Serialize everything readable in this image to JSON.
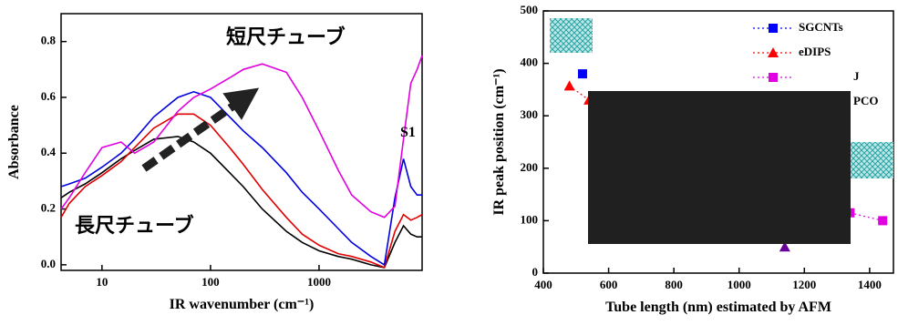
{
  "chart_data": [
    {
      "type": "line",
      "xlabel": "IR wavenumber (cm⁻¹)",
      "ylabel": "Absorbance",
      "xscale": "log",
      "xlim": [
        4.2,
        8900
      ],
      "ylim": [
        -0.02,
        0.9
      ],
      "xticks": [
        10,
        100,
        1000
      ],
      "yticks": [
        {
          "value": 0,
          "label": "0.0"
        },
        0.2,
        0.4,
        0.6,
        0.8
      ],
      "annotations": [
        "短尺チューブ",
        "長尺チューブ",
        "S1"
      ],
      "x": [
        4.2,
        5,
        7,
        10,
        15,
        20,
        30,
        50,
        70,
        100,
        150,
        200,
        300,
        500,
        700,
        1000,
        1500,
        2000,
        3000,
        4000,
        5000,
        6000,
        7000,
        8000,
        8900
      ],
      "series": [
        {
          "color": "#000000",
          "values": [
            0.24,
            0.26,
            0.29,
            0.33,
            0.38,
            0.41,
            0.45,
            0.46,
            0.44,
            0.4,
            0.33,
            0.28,
            0.2,
            0.12,
            0.08,
            0.05,
            0.03,
            0.02,
            0.0,
            -0.01,
            0.08,
            0.14,
            0.11,
            0.1,
            0.1
          ]
        },
        {
          "color": "#e00000",
          "values": [
            0.17,
            0.22,
            0.28,
            0.32,
            0.37,
            0.42,
            0.49,
            0.54,
            0.54,
            0.5,
            0.42,
            0.36,
            0.27,
            0.17,
            0.11,
            0.07,
            0.04,
            0.03,
            0.01,
            -0.01,
            0.12,
            0.18,
            0.16,
            0.17,
            0.18
          ]
        },
        {
          "color": "#0000e0",
          "values": [
            0.28,
            0.29,
            0.31,
            0.35,
            0.4,
            0.45,
            0.53,
            0.6,
            0.62,
            0.6,
            0.53,
            0.48,
            0.42,
            0.33,
            0.26,
            0.2,
            0.13,
            0.08,
            0.03,
            0.0,
            0.24,
            0.38,
            0.28,
            0.25,
            0.25
          ]
        },
        {
          "color": "#e000e0",
          "values": [
            0.2,
            0.24,
            0.33,
            0.42,
            0.44,
            0.4,
            0.44,
            0.55,
            0.6,
            0.63,
            0.67,
            0.7,
            0.72,
            0.69,
            0.6,
            0.48,
            0.34,
            0.25,
            0.19,
            0.17,
            0.21,
            0.45,
            0.65,
            0.7,
            0.75
          ]
        }
      ]
    },
    {
      "type": "scatter",
      "xlabel": "Tube length (nm) estimated by AFM",
      "ylabel": "IR peak position (cm⁻¹)",
      "xlim": [
        400,
        1473
      ],
      "ylim": [
        0,
        500
      ],
      "xticks": [
        400,
        600,
        800,
        1000,
        1200,
        1400
      ],
      "yticks": [
        0,
        100,
        200,
        300,
        400,
        500
      ],
      "series": [
        {
          "name": "SGCNTs",
          "color": "#0000ff",
          "marker": "square",
          "x": [
            520
          ],
          "values": [
            380
          ]
        },
        {
          "name": "eDIPS",
          "color": "#ff0000",
          "marker": "triangle",
          "x": [
            480,
            540
          ],
          "values": [
            357,
            330
          ]
        },
        {
          "name": "J",
          "color": "#e000e0",
          "marker": "square",
          "x": [
            1340,
            1440
          ],
          "values": [
            115,
            100
          ]
        },
        {
          "name": "PCO",
          "color": "#660099",
          "marker": "triangle",
          "x": [
            1140
          ],
          "values": [
            50
          ]
        }
      ]
    }
  ]
}
